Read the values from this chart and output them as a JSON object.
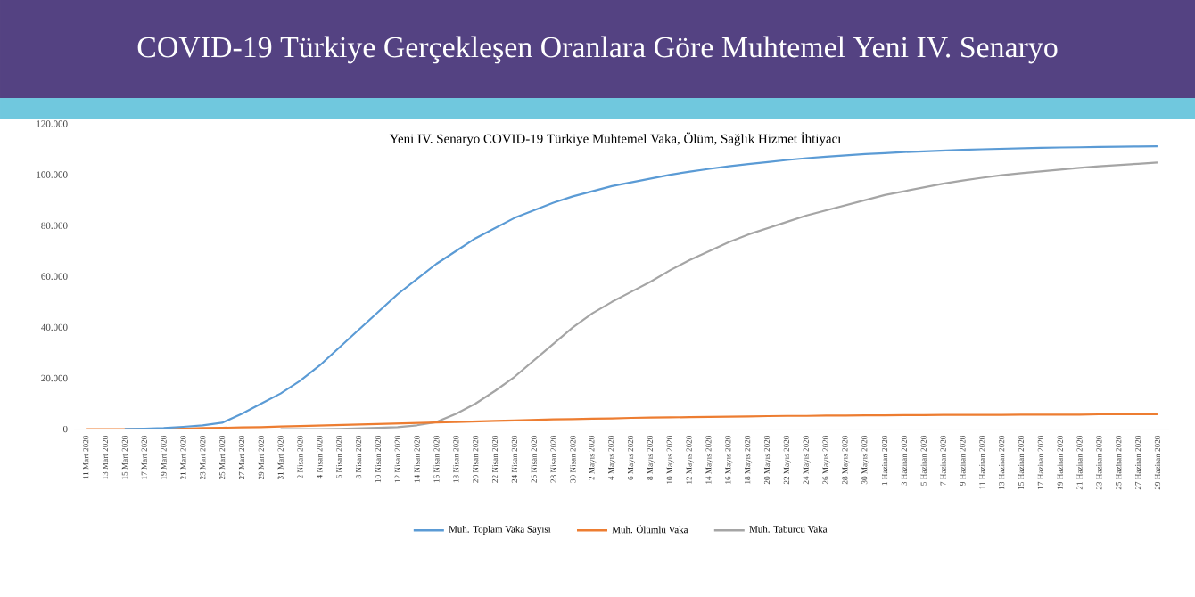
{
  "chart_data": {
    "type": "line",
    "title": "COVID-19 Türkiye Gerçekleşen Oranlara Göre Muhtemel Yeni IV. Senaryo",
    "subtitle": "Yeni  IV. Senaryo COVID-19 Türkiye Muhtemel Vaka, Ölüm, Sağlık Hizmet İhtiyacı",
    "categories": [
      "11 Mart 2020",
      "13 Mart 2020",
      "15 Mart 2020",
      "17 Mart 2020",
      "19 Mart 2020",
      "21 Mart 2020",
      "23 Mart 2020",
      "25 Mart 2020",
      "27 Mart 2020",
      "29 Mart 2020",
      "31 Mart 2020",
      "2 Nisan 2020",
      "4 Nisan 2020",
      "6 Nisan 2020",
      "8 Nisan 2020",
      "10 Nisan 2020",
      "12 Nisan 2020",
      "14 Nisan 2020",
      "16 Nisan 2020",
      "18 Nisan 2020",
      "20 Nisan 2020",
      "22 Nisan 2020",
      "24 Nisan 2020",
      "26 Nisan 2020",
      "28 Nisan 2020",
      "30 Nisan 2020",
      "2 Mayıs 2020",
      "4 Mayıs 2020",
      "6 Mayıs 2020",
      "8 Mayıs 2020",
      "10 Mayıs 2020",
      "12 Mayıs 2020",
      "14 Mayıs 2020",
      "16 Mayıs 2020",
      "18 Mayıs 2020",
      "20 Mayıs 2020",
      "22 Mayıs 2020",
      "24 Mayıs 2020",
      "26 Mayıs 2020",
      "28 Mayıs 2020",
      "30 Mayıs 2020",
      "1 Haziran 2020",
      "3 Haziran 2020",
      "5 Haziran 2020",
      "7 Haziran 2020",
      "9 Haziran 2020",
      "11 Haziran 2020",
      "13 Haziran 2020",
      "15 Haziran 2020",
      "17 Haziran 2020",
      "19 Haziran 2020",
      "21 Haziran 2020",
      "23 Haziran 2020",
      "25 Haziran 2020",
      "27 Haziran 2020",
      "29 Haziran 2020"
    ],
    "series": [
      {
        "name": "Muh. Toplam Vaka Sayısı",
        "color": "#5b9bd5",
        "values": [
          null,
          null,
          100,
          200,
          400,
          900,
          1500,
          2500,
          6000,
          10000,
          14000,
          19000,
          25000,
          32000,
          39000,
          46000,
          53000,
          59000,
          65000,
          70000,
          75000,
          79000,
          83000,
          86000,
          89000,
          91500,
          93500,
          95500,
          97000,
          98500,
          100000,
          101200,
          102300,
          103300,
          104200,
          105000,
          105800,
          106500,
          107100,
          107600,
          108100,
          108500,
          108900,
          109200,
          109500,
          109800,
          110000,
          110200,
          110400,
          110600,
          110700,
          110800,
          110900,
          111000,
          111100,
          111200
        ]
      },
      {
        "name": "Muh. Ölümlü Vaka",
        "color": "#ed7d31",
        "values": [
          0,
          0,
          0,
          0,
          100,
          200,
          400,
          500,
          700,
          800,
          1000,
          1200,
          1400,
          1600,
          1800,
          2000,
          2200,
          2400,
          2600,
          2800,
          3000,
          3200,
          3400,
          3600,
          3800,
          3900,
          4100,
          4200,
          4400,
          4500,
          4600,
          4700,
          4800,
          4900,
          5000,
          5100,
          5200,
          5200,
          5300,
          5300,
          5400,
          5400,
          5500,
          5500,
          5600,
          5600,
          5600,
          5600,
          5700,
          5700,
          5700,
          5700,
          5800,
          5800,
          5800,
          5800
        ]
      },
      {
        "name": "Muh. Taburcu Vaka",
        "color": "#a5a5a5",
        "values": [
          null,
          null,
          null,
          null,
          null,
          null,
          null,
          null,
          null,
          null,
          0,
          0,
          0,
          100,
          300,
          500,
          800,
          1500,
          2800,
          6000,
          10000,
          15000,
          20500,
          27000,
          33500,
          40000,
          45500,
          50000,
          54000,
          58000,
          62500,
          66500,
          70000,
          73500,
          76500,
          79000,
          81500,
          84000,
          86000,
          88000,
          90000,
          92000,
          93500,
          95000,
          96500,
          97700,
          98800,
          99800,
          100600,
          101300,
          102000,
          102700,
          103300,
          103800,
          104300,
          104800
        ]
      }
    ],
    "ylim": [
      0,
      120000
    ],
    "yticks": [
      0,
      {
        "value": 20000,
        "label": "20.000"
      },
      {
        "value": 40000,
        "label": "40.000"
      },
      {
        "value": 60000,
        "label": "60.000"
      },
      {
        "value": 80000,
        "label": "80.000"
      },
      {
        "value": 100000,
        "label": "100.000"
      },
      {
        "value": 120000,
        "label": "120.000"
      }
    ],
    "legend": "bottom"
  }
}
